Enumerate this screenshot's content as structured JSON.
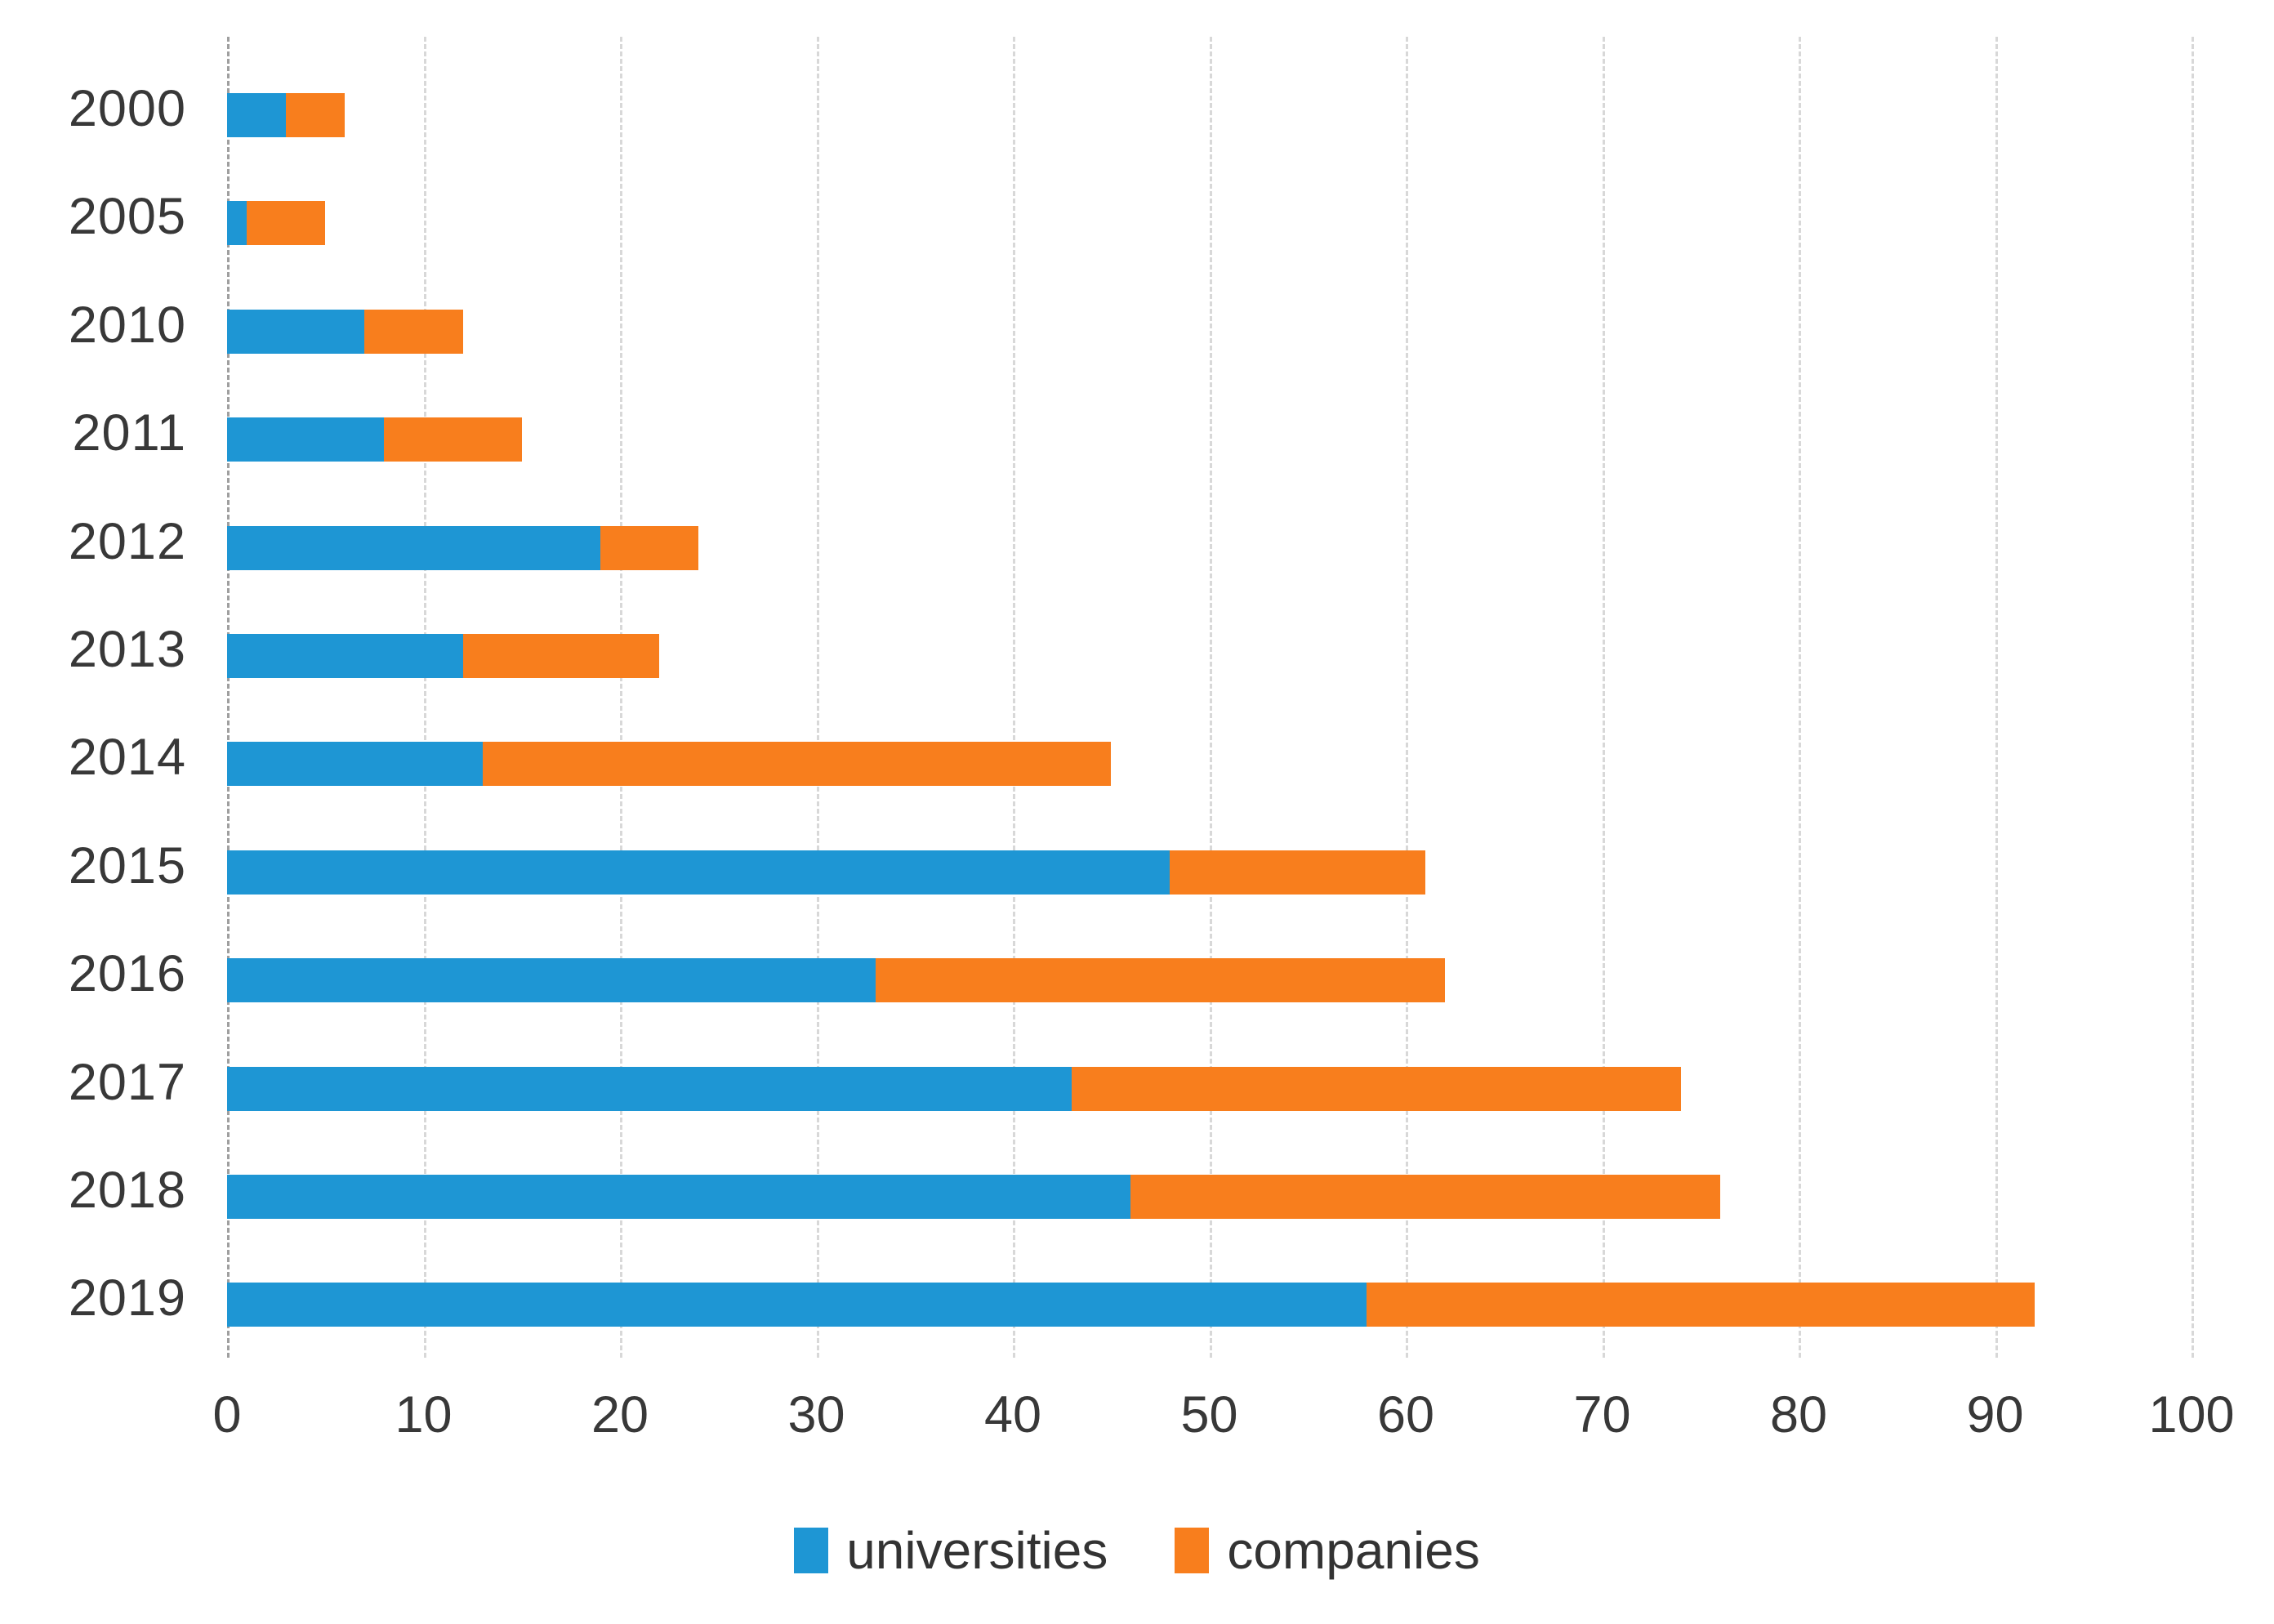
{
  "chart_data": {
    "type": "bar",
    "orientation": "horizontal",
    "stacked": true,
    "title": "",
    "xlabel": "",
    "ylabel": "",
    "categories": [
      "2000",
      "2005",
      "2010",
      "2011",
      "2012",
      "2013",
      "2014",
      "2015",
      "2016",
      "2017",
      "2018",
      "2019"
    ],
    "series": [
      {
        "name": "universities",
        "color": "#1e96d4",
        "values": [
          3,
          1,
          7,
          8,
          19,
          12,
          13,
          48,
          33,
          43,
          46,
          58
        ]
      },
      {
        "name": "companies",
        "color": "#f87e1d",
        "values": [
          3,
          4,
          5,
          7,
          5,
          10,
          32,
          13,
          29,
          31,
          30,
          34
        ]
      }
    ],
    "totals": [
      6,
      5,
      12,
      15,
      24,
      22,
      45,
      61,
      62,
      74,
      76,
      92
    ],
    "xlim": [
      0,
      100
    ],
    "xticks": [
      0,
      10,
      20,
      30,
      40,
      50,
      60,
      70,
      80,
      90,
      100
    ],
    "grid": true,
    "gridline_style": "dashed",
    "legend_position": "bottom-center"
  },
  "legend": {
    "items": [
      {
        "label": "universities",
        "color": "#1e96d4"
      },
      {
        "label": "companies",
        "color": "#f87e1d"
      }
    ]
  },
  "colors": {
    "background": "#ffffff",
    "gridline": "#d8d8d8",
    "zero_gridline": "#9f9f9f",
    "axis_text": "#383838"
  }
}
